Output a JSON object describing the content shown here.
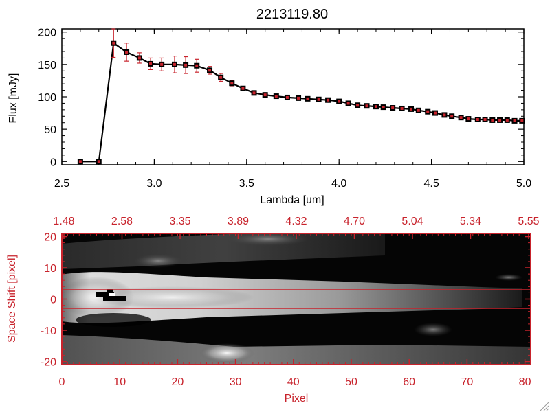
{
  "title": "2213119.80",
  "colors": {
    "accent_red": "#c8232c",
    "line": "#000000",
    "marker": "#c8232c"
  },
  "chart_data": [
    {
      "type": "line",
      "title": "2213119.80",
      "xlabel": "Lambda [um]",
      "ylabel": "Flux [mJy]",
      "xlim": [
        2.5,
        5.0
      ],
      "ylim": [
        -5,
        205
      ],
      "grid": false,
      "xticks": [
        "2.5",
        "3.0",
        "3.5",
        "4.0",
        "4.5",
        "5.0"
      ],
      "yticks": [
        "0",
        "50",
        "100",
        "150",
        "200"
      ],
      "series": [
        {
          "x": [
            2.6,
            2.7,
            2.78,
            2.85,
            2.92,
            2.98,
            3.04,
            3.11,
            3.17,
            3.23,
            3.3,
            3.36,
            3.42,
            3.48,
            3.54,
            3.6,
            3.66,
            3.72,
            3.78,
            3.83,
            3.89,
            3.94,
            4.0,
            4.05,
            4.1,
            4.15,
            4.2,
            4.24,
            4.29,
            4.34,
            4.39,
            4.43,
            4.48,
            4.52,
            4.57,
            4.61,
            4.66,
            4.7,
            4.75,
            4.79,
            4.83,
            4.87,
            4.91,
            4.95,
            4.99
          ],
          "y": [
            0,
            0,
            183,
            169,
            160,
            151,
            150,
            150,
            149,
            148,
            141,
            130,
            121,
            113,
            106,
            103,
            101,
            99,
            98,
            97,
            96,
            95,
            93,
            90,
            87,
            86,
            85,
            84,
            83,
            82,
            81,
            79,
            77,
            75,
            72,
            70,
            68,
            66,
            65,
            65,
            64,
            64,
            64,
            63,
            63
          ],
          "yerr": [
            0,
            0,
            22,
            14,
            8,
            9,
            10,
            13,
            13,
            10,
            6,
            6,
            4,
            3,
            2,
            2,
            2,
            2,
            2,
            2,
            2,
            2,
            2,
            2,
            2,
            2,
            2,
            2,
            2,
            2,
            2,
            2,
            2,
            2,
            2,
            2,
            2,
            2,
            2,
            2,
            2,
            2,
            3,
            3,
            3
          ]
        }
      ]
    },
    {
      "type": "heatmap",
      "xlabel": "Pixel",
      "ylabel": "Space Shift [pixel]",
      "xlim": [
        0,
        81
      ],
      "ylim": [
        -21,
        21
      ],
      "xticks": [
        "0",
        "10",
        "20",
        "30",
        "40",
        "50",
        "60",
        "70",
        "80"
      ],
      "yticks": [
        "-20",
        "-10",
        "0",
        "10",
        "20"
      ],
      "top_ticks": [
        "1.48",
        "2.58",
        "3.35",
        "3.89",
        "4.32",
        "4.70",
        "5.04",
        "5.34",
        "5.55"
      ],
      "extraction_lines": [
        3,
        -3
      ],
      "colormap": "grayscale"
    }
  ]
}
